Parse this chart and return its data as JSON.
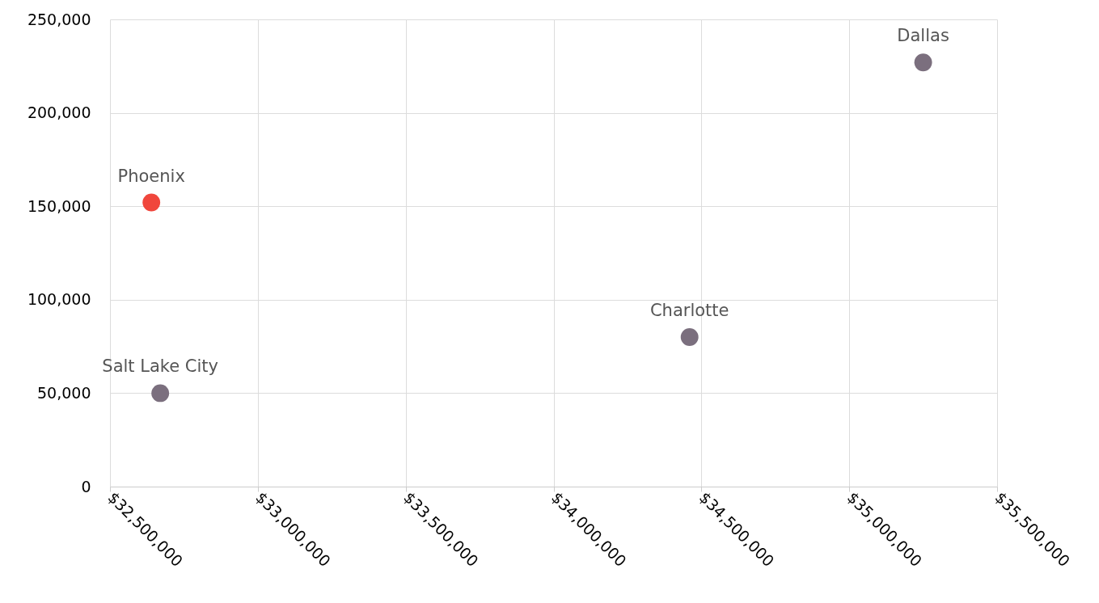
{
  "chart_data": {
    "type": "scatter",
    "marker": "circle",
    "grid": true,
    "legend": false,
    "xlim": [
      32500000,
      35500000
    ],
    "xticks": [
      {
        "value": 32500000,
        "label": "$32,500,000"
      },
      {
        "value": 33000000,
        "label": "$33,000,000"
      },
      {
        "value": 33500000,
        "label": "$33,500,000"
      },
      {
        "value": 34000000,
        "label": "$34,000,000"
      },
      {
        "value": 34500000,
        "label": "$34,500,000"
      },
      {
        "value": 35000000,
        "label": "$35,000,000"
      },
      {
        "value": 35500000,
        "label": "$35,500,000"
      }
    ],
    "ylim": [
      0,
      250000
    ],
    "yticks": [
      0,
      {
        "value": 50000,
        "label": "50,000"
      },
      {
        "value": 100000,
        "label": "100,000"
      },
      {
        "value": 150000,
        "label": "150,000"
      },
      {
        "value": 200000,
        "label": "200,000"
      },
      {
        "value": 250000,
        "label": "250,000"
      }
    ],
    "series": [
      {
        "name": "Phoenix",
        "color": "#f0463c",
        "x": [
          32640000
        ],
        "values": [
          152000
        ]
      },
      {
        "name": "Salt Lake City",
        "color": "#7b6f7e",
        "x": [
          32670000
        ],
        "values": [
          50000
        ]
      },
      {
        "name": "Charlotte",
        "color": "#7b6f7e",
        "x": [
          34460000
        ],
        "values": [
          80000
        ]
      },
      {
        "name": "Dallas",
        "color": "#7b6f7e",
        "x": [
          35250000
        ],
        "values": [
          227000
        ]
      }
    ]
  }
}
